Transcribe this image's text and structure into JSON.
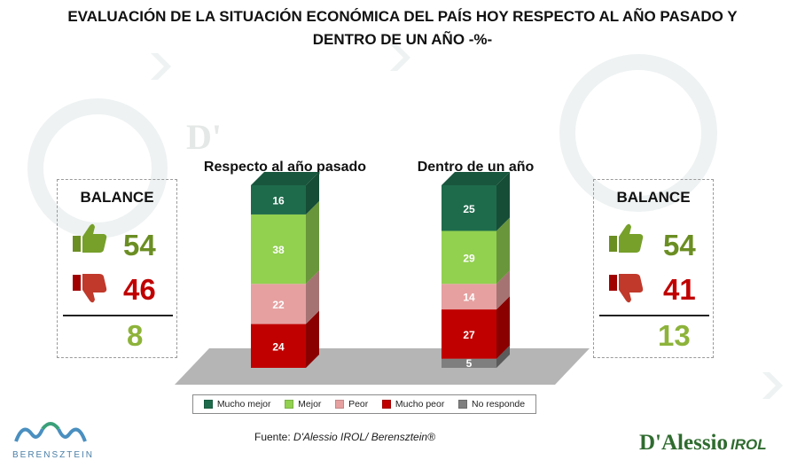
{
  "page": {
    "title_line1": "EVALUACIÓN DE LA SITUACIÓN ECONÓMICA DEL PAÍS HOY RESPECTO AL AÑO PASADO Y",
    "title_line2": "DENTRO DE UN AÑO -%-"
  },
  "balance_left": {
    "title": "BALANCE",
    "positive": "54",
    "negative": "46",
    "balance": "8"
  },
  "balance_right": {
    "title": "BALANCE",
    "positive": "54",
    "negative": "41",
    "balance": "13"
  },
  "footer": {
    "source_label": "Fuente:",
    "source_value": "D'Alessio IROL/ Berensztein®",
    "brand_left": "BERENSZTEIN",
    "brand_right": "D'Alessio",
    "brand_right_suffix": "IROL",
    "watermark": "D'"
  },
  "colors": {
    "Mucho mejor": "#1e6b4c",
    "Mejor": "#92d050",
    "Peor": "#e6a0a0",
    "Mucho peor": "#c00000",
    "No responde": "#7f7f7f"
  },
  "chart_data": {
    "type": "bar",
    "stacked": true,
    "title": "EVALUACIÓN DE LA SITUACIÓN ECONÓMICA DEL PAÍS HOY RESPECTO AL AÑO PASADO Y DENTRO DE UN AÑO -%-",
    "categories": [
      "Respecto al año pasado",
      "Dentro de un año"
    ],
    "series": [
      {
        "name": "No responde",
        "values": [
          0,
          5
        ]
      },
      {
        "name": "Mucho peor",
        "values": [
          24,
          27
        ]
      },
      {
        "name": "Peor",
        "values": [
          22,
          14
        ]
      },
      {
        "name": "Mejor",
        "values": [
          38,
          29
        ]
      },
      {
        "name": "Mucho mejor",
        "values": [
          16,
          25
        ]
      }
    ],
    "legend_order": [
      "Mucho mejor",
      "Mejor",
      "Peor",
      "Mucho peor",
      "No responde"
    ],
    "ylim": [
      0,
      100
    ],
    "legend_position": "bottom"
  }
}
